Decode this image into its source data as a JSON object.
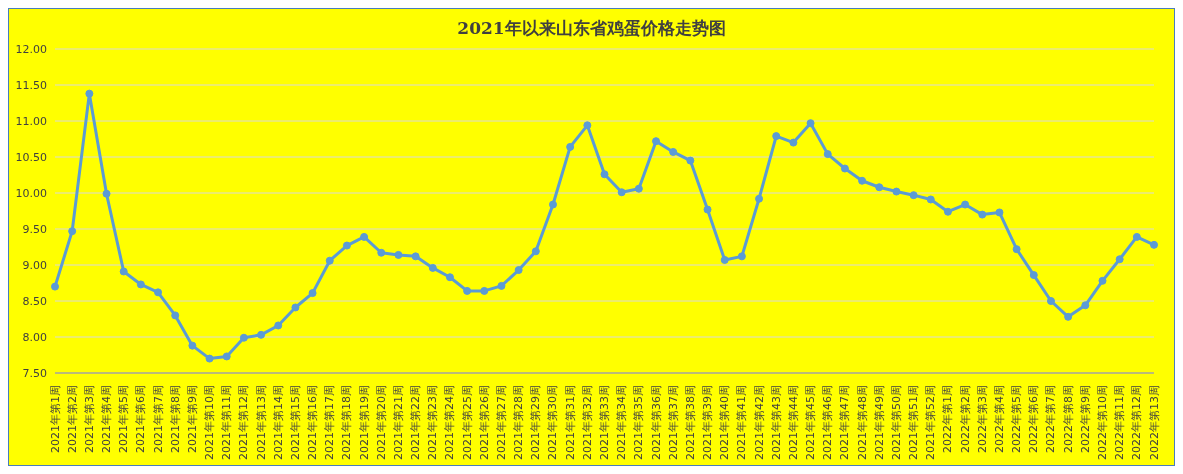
{
  "chart_data": {
    "type": "line",
    "title": "2021年以来山东省鸡蛋价格走势图",
    "categories": [
      "2021年第1周",
      "2021年第2周",
      "2021年第3周",
      "2021年第4周",
      "2021年第5周",
      "2021年第6周",
      "2021年第7周",
      "2021年第8周",
      "2021年第9周",
      "2021年第10周",
      "2021年第11周",
      "2021年第12周",
      "2021年第13周",
      "2021年第14周",
      "2021年第15周",
      "2021年第16周",
      "2021年第17周",
      "2021年第18周",
      "2021年第19周",
      "2021年第20周",
      "2021年第21周",
      "2021年第22周",
      "2021年第23周",
      "2021年第24周",
      "2021年第25周",
      "2021年第26周",
      "2021年第27周",
      "2021年第28周",
      "2021年第29周",
      "2021年第30周",
      "2021年第31周",
      "2021年第32周",
      "2021年第33周",
      "2021年第34周",
      "2021年第35周",
      "2021年第36周",
      "2021年第37周",
      "2021年第38周",
      "2021年第39周",
      "2021年第40周",
      "2021年第41周",
      "2021年第42周",
      "2021年第43周",
      "2021年第44周",
      "2021年第45周",
      "2021年第46周",
      "2021年第47周",
      "2021年第48周",
      "2021年第49周",
      "2021年第50周",
      "2021年第51周",
      "2021年第52周",
      "2022年第1周",
      "2022年第2周",
      "2022年第3周",
      "2022年第4周",
      "2022年第5周",
      "2022年第6周",
      "2022年第7周",
      "2022年第8周",
      "2022年第9周",
      "2022年第10周",
      "2022年第11周",
      "2022年第12周",
      "2022年第13周"
    ],
    "series": [
      {
        "color": "#5b9bd5",
        "values": [
          8.7,
          9.47,
          11.38,
          9.99,
          8.91,
          8.73,
          8.62,
          8.3,
          7.88,
          7.7,
          7.73,
          7.99,
          8.03,
          8.16,
          8.41,
          8.61,
          9.06,
          9.27,
          9.39,
          9.17,
          9.14,
          9.12,
          8.96,
          8.83,
          8.64,
          8.64,
          8.71,
          8.93,
          9.19,
          9.84,
          10.64,
          10.94,
          10.26,
          10.01,
          10.06,
          10.72,
          10.57,
          10.45,
          9.77,
          9.07,
          9.12,
          9.92,
          10.79,
          10.7,
          10.97,
          10.54,
          10.34,
          10.17,
          10.08,
          10.02,
          9.97,
          9.91,
          9.74,
          9.84,
          9.7,
          9.73,
          9.22,
          8.86,
          8.5,
          8.28,
          8.44,
          8.78,
          9.08,
          9.39,
          9.28
        ]
      }
    ],
    "ylim": [
      7.5,
      12
    ],
    "yticks": [
      {
        "value": 7.5,
        "label": "7.50"
      },
      {
        "value": 8,
        "label": "8.00"
      },
      {
        "value": 8.5,
        "label": "8.50"
      },
      {
        "value": 9,
        "label": "9.00"
      },
      {
        "value": 9.5,
        "label": "9.50"
      },
      {
        "value": 10,
        "label": "10.00"
      },
      {
        "value": 10.5,
        "label": "10.50"
      },
      {
        "value": 11,
        "label": "11.00"
      },
      {
        "value": 11.5,
        "label": "11.50"
      },
      {
        "value": 12,
        "label": "12.00"
      }
    ],
    "grid": "y",
    "marker": "circle",
    "line_style": "solid",
    "legend": false
  }
}
